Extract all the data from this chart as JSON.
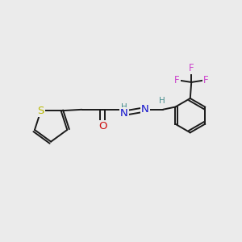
{
  "bg_color": "#ebebeb",
  "bond_color": "#1a1a1a",
  "S_color": "#b8b800",
  "N_color": "#1010cc",
  "O_color": "#cc1010",
  "F_color": "#cc44cc",
  "teal_color": "#4a9090",
  "font_size": 8.5,
  "line_width": 1.4,
  "figsize": [
    3.0,
    3.0
  ],
  "dpi": 100,
  "xlim": [
    0,
    10
  ],
  "ylim": [
    0,
    10
  ]
}
